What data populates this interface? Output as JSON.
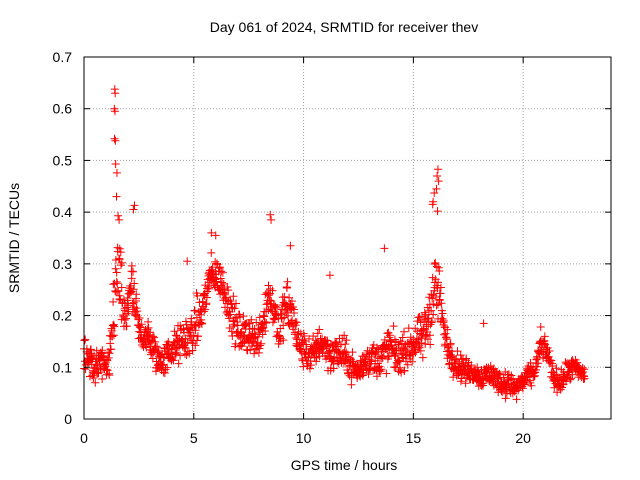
{
  "chart_data": {
    "type": "scatter",
    "title": "Day 061 of 2024, SRMTID for receiver thev",
    "xlabel": "GPS time / hours",
    "ylabel": "SRMTID / TECUs",
    "xlim": [
      0,
      24
    ],
    "ylim": [
      0,
      0.7
    ],
    "xticks": [
      0,
      5,
      10,
      15,
      20
    ],
    "xtick_labels": [
      "0",
      "5",
      "10",
      "15",
      "20"
    ],
    "yticks": [
      0,
      0.1,
      0.2,
      0.3,
      0.4,
      0.5,
      0.6,
      0.7
    ],
    "ytick_labels": [
      "0",
      "0.1",
      "0.2",
      "0.3",
      "0.4",
      "0.5",
      "0.6",
      "0.7"
    ],
    "grid": true,
    "marker": "+",
    "color": "#ff0000",
    "envelope": {
      "x": [
        0.0,
        0.3,
        0.5,
        0.8,
        1.0,
        1.2,
        1.35,
        1.5,
        1.7,
        1.9,
        2.1,
        2.3,
        2.5,
        2.8,
        3.0,
        3.3,
        3.6,
        3.9,
        4.2,
        4.5,
        4.8,
        5.1,
        5.4,
        5.7,
        6.0,
        6.3,
        6.6,
        6.9,
        7.2,
        7.5,
        7.8,
        8.1,
        8.4,
        8.6,
        8.9,
        9.2,
        9.5,
        9.8,
        10.1,
        10.4,
        10.7,
        11.0,
        11.3,
        11.6,
        11.9,
        12.2,
        12.5,
        12.8,
        13.1,
        13.4,
        13.7,
        14.0,
        14.3,
        14.6,
        14.9,
        15.2,
        15.5,
        15.8,
        16.0,
        16.2,
        16.4,
        16.6,
        16.9,
        17.2,
        17.5,
        17.8,
        18.1,
        18.4,
        18.7,
        19.0,
        19.3,
        19.6,
        19.9,
        20.2,
        20.5,
        20.8,
        21.1,
        21.4,
        21.7,
        22.0,
        22.3,
        22.6,
        22.8
      ],
      "center": [
        0.13,
        0.12,
        0.1,
        0.11,
        0.09,
        0.12,
        0.22,
        0.29,
        0.24,
        0.18,
        0.27,
        0.22,
        0.17,
        0.16,
        0.15,
        0.12,
        0.11,
        0.13,
        0.14,
        0.15,
        0.16,
        0.18,
        0.21,
        0.27,
        0.28,
        0.26,
        0.22,
        0.18,
        0.16,
        0.17,
        0.15,
        0.18,
        0.24,
        0.22,
        0.17,
        0.22,
        0.2,
        0.14,
        0.13,
        0.12,
        0.15,
        0.14,
        0.12,
        0.13,
        0.12,
        0.1,
        0.09,
        0.11,
        0.12,
        0.11,
        0.13,
        0.14,
        0.12,
        0.13,
        0.14,
        0.15,
        0.16,
        0.22,
        0.26,
        0.24,
        0.17,
        0.13,
        0.11,
        0.1,
        0.09,
        0.09,
        0.08,
        0.09,
        0.08,
        0.07,
        0.07,
        0.06,
        0.07,
        0.08,
        0.09,
        0.14,
        0.13,
        0.08,
        0.07,
        0.09,
        0.1,
        0.09,
        0.09
      ],
      "spread": [
        0.05,
        0.05,
        0.05,
        0.05,
        0.04,
        0.06,
        0.12,
        0.12,
        0.1,
        0.06,
        0.08,
        0.07,
        0.05,
        0.05,
        0.05,
        0.05,
        0.04,
        0.05,
        0.05,
        0.06,
        0.06,
        0.07,
        0.07,
        0.06,
        0.05,
        0.05,
        0.06,
        0.06,
        0.05,
        0.06,
        0.05,
        0.07,
        0.07,
        0.06,
        0.06,
        0.07,
        0.07,
        0.05,
        0.05,
        0.05,
        0.05,
        0.05,
        0.05,
        0.05,
        0.05,
        0.04,
        0.04,
        0.04,
        0.05,
        0.05,
        0.06,
        0.06,
        0.05,
        0.05,
        0.05,
        0.06,
        0.07,
        0.1,
        0.1,
        0.09,
        0.05,
        0.04,
        0.04,
        0.04,
        0.03,
        0.03,
        0.03,
        0.04,
        0.03,
        0.03,
        0.03,
        0.03,
        0.03,
        0.03,
        0.03,
        0.03,
        0.03,
        0.03,
        0.03,
        0.03,
        0.03,
        0.03,
        0.03
      ]
    },
    "points": [
      {
        "x": 1.4,
        "y": 0.638
      },
      {
        "x": 1.42,
        "y": 0.63
      },
      {
        "x": 1.38,
        "y": 0.6
      },
      {
        "x": 1.41,
        "y": 0.595
      },
      {
        "x": 1.39,
        "y": 0.542
      },
      {
        "x": 1.43,
        "y": 0.538
      },
      {
        "x": 1.44,
        "y": 0.493
      },
      {
        "x": 1.5,
        "y": 0.476
      },
      {
        "x": 1.48,
        "y": 0.43
      },
      {
        "x": 1.55,
        "y": 0.393
      },
      {
        "x": 1.6,
        "y": 0.385
      },
      {
        "x": 16.12,
        "y": 0.483
      },
      {
        "x": 16.08,
        "y": 0.47
      },
      {
        "x": 16.15,
        "y": 0.46
      },
      {
        "x": 16.05,
        "y": 0.445
      },
      {
        "x": 15.95,
        "y": 0.437
      },
      {
        "x": 15.9,
        "y": 0.42
      },
      {
        "x": 15.88,
        "y": 0.415
      },
      {
        "x": 16.1,
        "y": 0.402
      },
      {
        "x": 13.68,
        "y": 0.33
      },
      {
        "x": 8.48,
        "y": 0.395
      },
      {
        "x": 8.52,
        "y": 0.385
      },
      {
        "x": 2.3,
        "y": 0.413
      },
      {
        "x": 2.25,
        "y": 0.405
      },
      {
        "x": 5.8,
        "y": 0.36
      },
      {
        "x": 6.0,
        "y": 0.355
      },
      {
        "x": 9.4,
        "y": 0.335
      },
      {
        "x": 11.2,
        "y": 0.278
      },
      {
        "x": 4.7,
        "y": 0.305
      },
      {
        "x": 18.2,
        "y": 0.185
      },
      {
        "x": 20.8,
        "y": 0.178
      },
      {
        "x": 19.2,
        "y": 0.04
      },
      {
        "x": 19.7,
        "y": 0.038
      }
    ],
    "scatter_count": 1500,
    "scatter_seed": 61
  }
}
